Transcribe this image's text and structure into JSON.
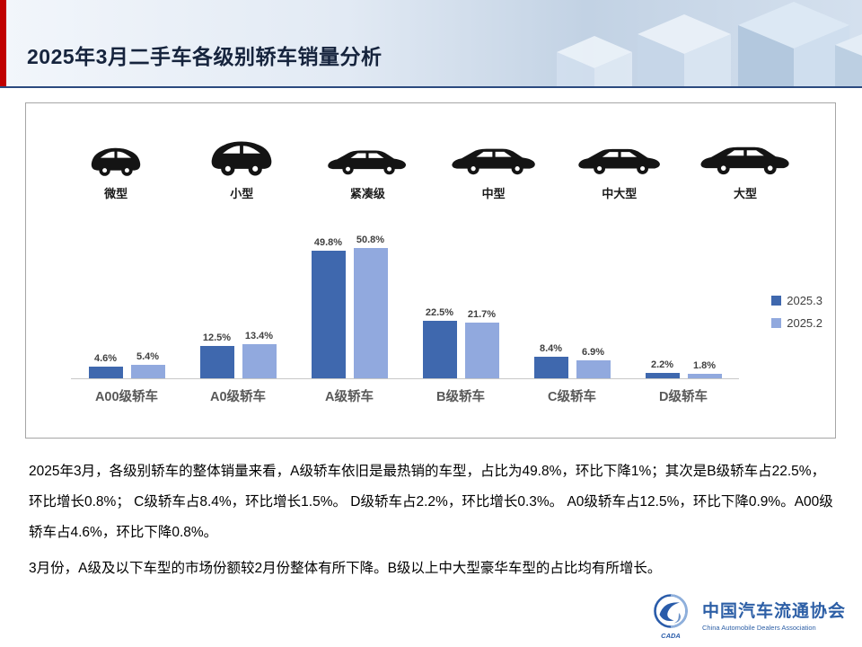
{
  "header": {
    "title": "2025年3月二手车各级别轿车销量分析"
  },
  "chart_data": {
    "type": "bar",
    "categories": [
      "A00级轿车",
      "A0级轿车",
      "A级轿车",
      "B级轿车",
      "C级轿车",
      "D级轿车"
    ],
    "vehicle_types": [
      "微型",
      "小型",
      "紧凑级",
      "中型",
      "中大型",
      "大型"
    ],
    "series": [
      {
        "name": "2025.3",
        "color": "#3f68ae",
        "values": [
          4.6,
          12.5,
          49.8,
          22.5,
          8.4,
          2.2
        ]
      },
      {
        "name": "2025.2",
        "color": "#91a9de",
        "values": [
          5.4,
          13.4,
          50.8,
          21.7,
          6.9,
          1.8
        ]
      }
    ],
    "value_suffix": "%",
    "ylim": [
      0,
      55
    ],
    "grid": false,
    "legend_position": "right",
    "title": "",
    "xlabel": "",
    "ylabel": ""
  },
  "body": {
    "paragraph1": "2025年3月，各级别轿车的整体销量来看，A级轿车依旧是最热销的车型，占比为49.8%，环比下降1%；其次是B级轿车占22.5%，环比增长0.8%； C级轿车占8.4%，环比增长1.5%。 D级轿车占2.2%，环比增长0.3%。 A0级轿车占12.5%，环比下降0.9%。A00级轿车占4.6%，环比下降0.8%。",
    "paragraph2": "3月份，A级及以下车型的市场份额较2月份整体有所下降。B级以上中大型豪华车型的占比均有所增长。"
  },
  "footer": {
    "org_name_cn": "中国汽车流通协会",
    "org_name_en": "China Automobile Dealers Association",
    "logo_text": "CADA"
  }
}
